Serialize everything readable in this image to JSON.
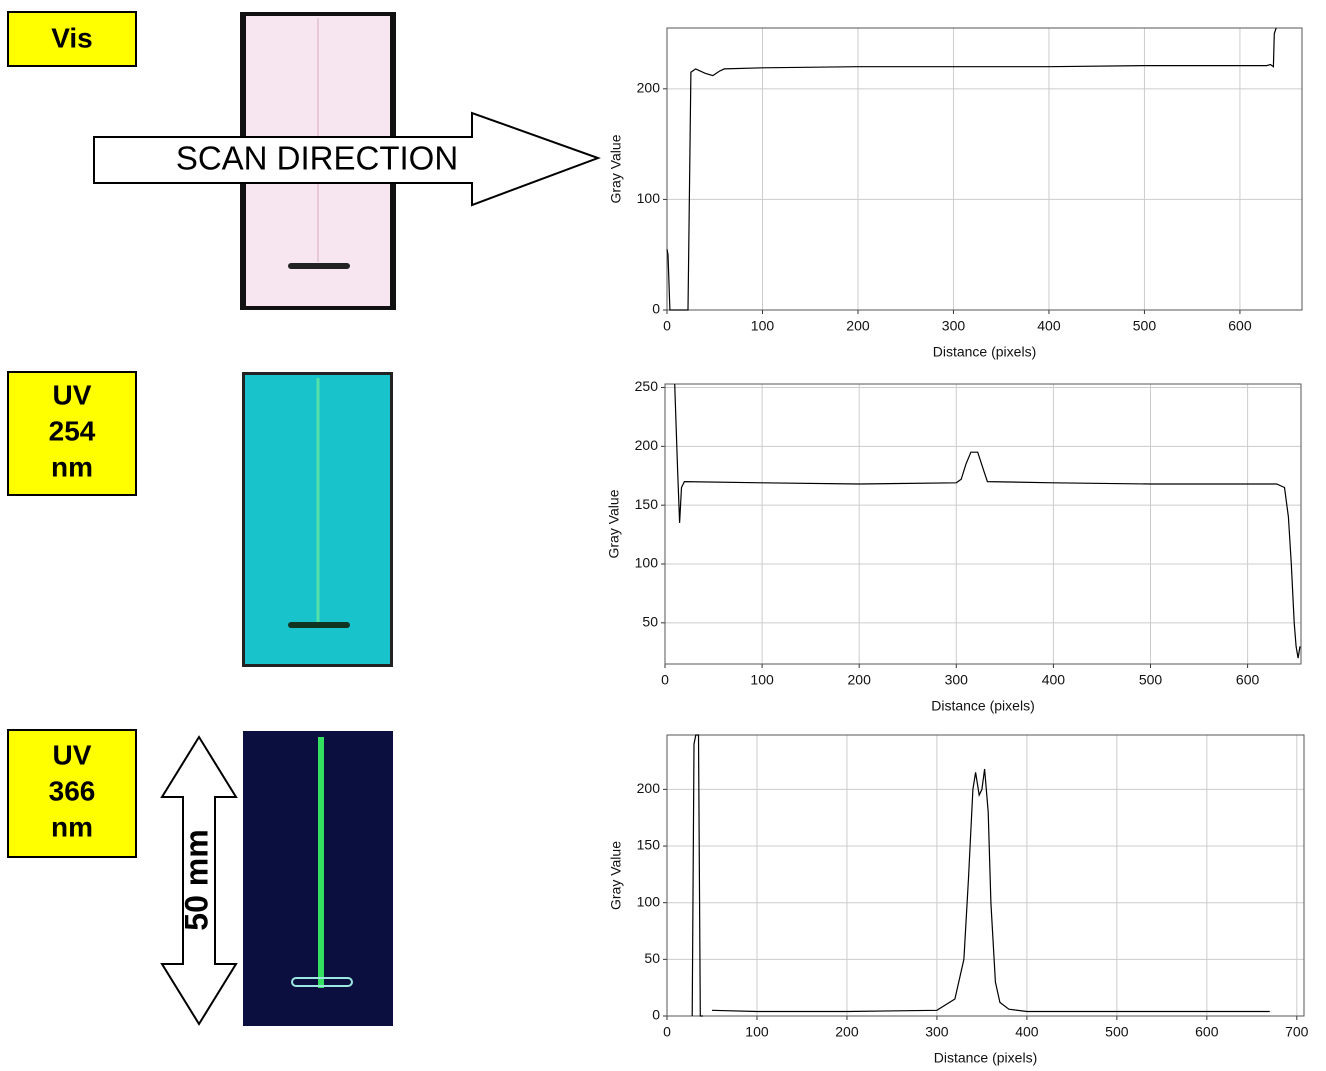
{
  "labels": [
    [
      "Vis"
    ],
    [
      "UV",
      "254",
      "nm"
    ],
    [
      "UV",
      "366",
      "nm"
    ]
  ],
  "scan_direction": "SCAN DIRECTION",
  "scale_bar": "50 mm",
  "chart_data": [
    {
      "type": "line",
      "xlabel": "Distance (pixels)",
      "ylabel": "Gray Value",
      "color": "#000000",
      "grid": true,
      "x": [
        0,
        1,
        3,
        10,
        20,
        22,
        25,
        30,
        40,
        48,
        55,
        60,
        100,
        200,
        300,
        400,
        500,
        600,
        628,
        632,
        635,
        636,
        638
      ],
      "values": [
        55,
        50,
        0,
        0,
        0,
        0,
        215,
        218,
        214,
        212,
        216,
        218,
        219,
        220,
        220,
        220,
        221,
        221,
        221,
        222,
        220,
        250,
        255
      ],
      "xlim": [
        0,
        665
      ],
      "ylim": [
        0,
        255
      ],
      "xticks": [
        0,
        100,
        200,
        300,
        400,
        500,
        600
      ],
      "yticks": [
        0,
        100,
        200
      ]
    },
    {
      "type": "line",
      "xlabel": "Distance (pixels)",
      "ylabel": "Gray Value",
      "color": "#000000",
      "grid": true,
      "x": [
        10,
        13,
        15,
        17,
        20,
        100,
        200,
        300,
        305,
        310,
        315,
        322,
        328,
        332,
        400,
        500,
        600,
        630,
        638,
        642,
        645,
        648,
        650,
        652,
        654
      ],
      "values": [
        253,
        180,
        135,
        165,
        170,
        169,
        168,
        169,
        172,
        185,
        195,
        195,
        180,
        170,
        169,
        168,
        168,
        168,
        165,
        140,
        100,
        50,
        30,
        20,
        30
      ],
      "xlim": [
        0,
        655
      ],
      "ylim": [
        15,
        253
      ],
      "xticks": [
        0,
        100,
        200,
        300,
        400,
        500,
        600
      ],
      "yticks": [
        50,
        100,
        150,
        200,
        250
      ]
    },
    {
      "type": "line",
      "xlabel": "Distance (pixels)",
      "ylabel": "Gray Value",
      "color": "#000000",
      "grid": true,
      "x": [
        28,
        30,
        32,
        35,
        37,
        40,
        45,
        50,
        100,
        200,
        300,
        320,
        330,
        335,
        340,
        343,
        347,
        350,
        353,
        357,
        360,
        365,
        370,
        380,
        400,
        500,
        600,
        670
      ],
      "values": [
        0,
        240,
        248,
        248,
        0,
        0,
        null,
        5,
        4,
        4,
        5,
        15,
        50,
        120,
        200,
        215,
        195,
        200,
        218,
        180,
        100,
        30,
        12,
        6,
        4,
        4,
        4,
        4
      ],
      "xlim": [
        0,
        708
      ],
      "ylim": [
        0,
        248
      ],
      "xticks": [
        0,
        100,
        200,
        300,
        400,
        500,
        600,
        700
      ],
      "yticks": [
        0,
        50,
        100,
        150,
        200
      ]
    }
  ]
}
